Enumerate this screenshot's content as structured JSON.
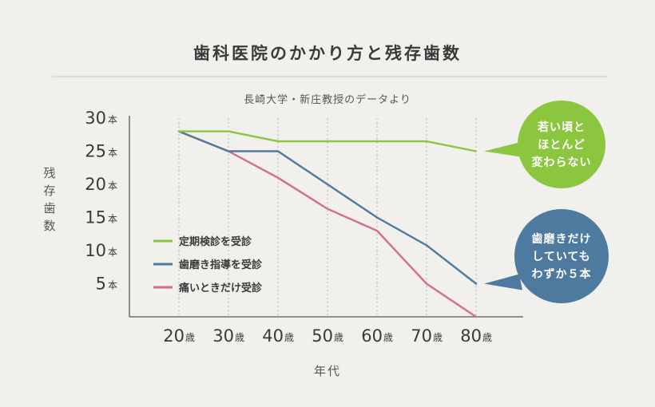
{
  "chart_data": {
    "type": "line",
    "title": "歯科医院のかかり方と残存歯数",
    "subtitle": "長崎大学・新庄教授のデータより",
    "xlabel": "年代",
    "ylabel": "残存歯数",
    "x_unit": "歳",
    "y_unit": "本",
    "categories": [
      "20",
      "30",
      "40",
      "50",
      "60",
      "70",
      "80"
    ],
    "y_ticks": [
      30,
      25,
      20,
      15,
      10,
      5
    ],
    "ylim": [
      0,
      30
    ],
    "grid": "vertical dotted",
    "legend_position": "bottom-left",
    "series": [
      {
        "name": "定期検診を受診",
        "color": "#8cc63f",
        "values": [
          28,
          28,
          26.5,
          26.5,
          26.5,
          26.5,
          25
        ]
      },
      {
        "name": "歯磨き指導を受診",
        "color": "#4e7aa0",
        "values": [
          28,
          25,
          25,
          20,
          15,
          10.8,
          5
        ]
      },
      {
        "name": "痛いときだけ受診",
        "color": "#d46f80",
        "values": [
          28,
          25,
          21,
          16.3,
          13,
          5,
          0
        ]
      }
    ],
    "annotations": [
      {
        "text": [
          "若い頃と",
          "ほとんど",
          "変わらない"
        ],
        "color": "#8cc63f",
        "series_index": 0,
        "category_index": 6
      },
      {
        "text": [
          "歯磨きだけ",
          "していても",
          "わずか５本"
        ],
        "color": "#4e7aa0",
        "series_index": 1,
        "category_index": 6
      }
    ]
  }
}
